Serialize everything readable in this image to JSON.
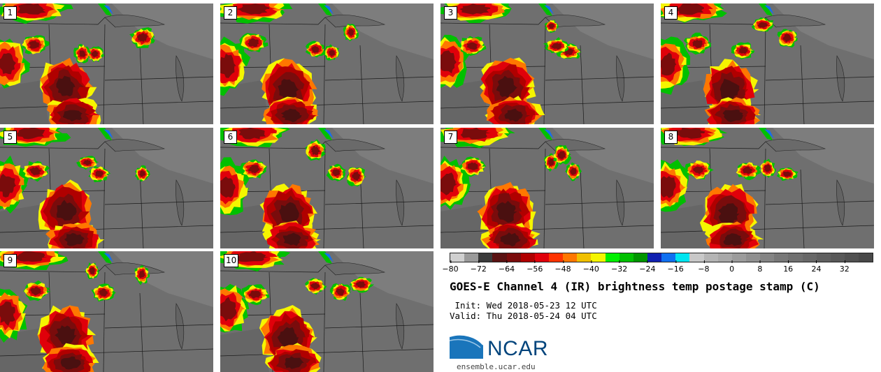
{
  "title": "GOES-E Channel 4 (IR) brightness temp postage stamp (C)",
  "init_line": " Init: Wed 2018-05-23 12 UTC",
  "valid_line": "Valid: Thu 2018-05-24 04 UTC",
  "panels": [
    {
      "label": "1"
    },
    {
      "label": "2"
    },
    {
      "label": "3"
    },
    {
      "label": "4"
    },
    {
      "label": "5"
    },
    {
      "label": "6"
    },
    {
      "label": "7"
    },
    {
      "label": "8"
    },
    {
      "label": "9"
    },
    {
      "label": "10"
    }
  ],
  "colorbar": {
    "min": -80,
    "max": 40,
    "tick_labels": [
      "−80",
      "−72",
      "−64",
      "−56",
      "−48",
      "−40",
      "−32",
      "−24",
      "−16",
      "−8",
      "0",
      "8",
      "16",
      "24",
      "32"
    ],
    "tick_values": [
      -80,
      -72,
      -64,
      -56,
      -48,
      -40,
      -32,
      -24,
      -16,
      -8,
      0,
      8,
      16,
      24,
      32
    ],
    "colors": [
      "#d0d0d0",
      "#9a9a9a",
      "#3a3a3a",
      "#5a1212",
      "#7a0c0c",
      "#b00000",
      "#e0000a",
      "#ff3300",
      "#ff7700",
      "#f0c000",
      "#f5f500",
      "#00f000",
      "#00c000",
      "#009500",
      "#1020b0",
      "#1070f0",
      "#00e5f0",
      "#c8c8c8",
      "#b4b4b4",
      "#a8a8a8",
      "#9c9c9c",
      "#909090",
      "#848484",
      "#787878",
      "#707070",
      "#686868",
      "#606060",
      "#585858",
      "#505050",
      "#484848"
    ]
  },
  "logo": {
    "text": "NCAR",
    "url_text": "ensemble.ucar.edu",
    "color": "#00447c"
  }
}
